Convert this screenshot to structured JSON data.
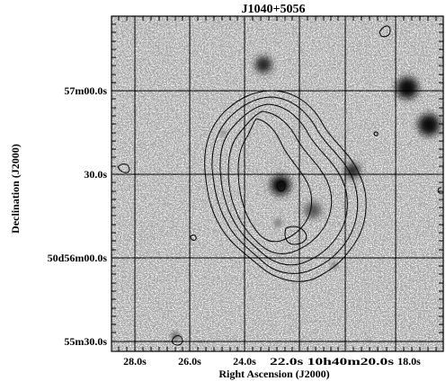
{
  "figure": {
    "title": "J1040+5056",
    "x_axis_label": "Right Ascension (J2000)",
    "y_axis_label": "Declination (J2000)",
    "x_ticks": [
      "28.0s",
      "26.0s",
      "24.0s",
      "22.0s 10h40m20.0s",
      "18.0s"
    ],
    "y_ticks": [
      "57m00.0s",
      "30.0s",
      "50d56m00.0s",
      "55m30.0s"
    ],
    "grid": true,
    "colors": {
      "frame": "#000000",
      "contour": "#000000",
      "background": "#ffffff"
    }
  }
}
